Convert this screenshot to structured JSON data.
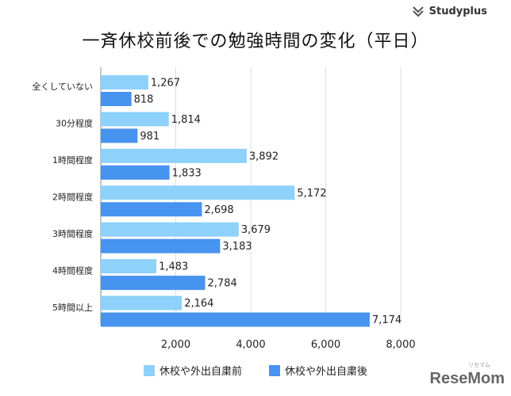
{
  "brand": {
    "name": "Studyplus"
  },
  "watermark": {
    "name": "ReseMom",
    "sub": "リセマム"
  },
  "colors": {
    "before": "#8ED1FA",
    "after": "#4793F0"
  },
  "chart_data": {
    "type": "bar",
    "orientation": "horizontal",
    "title": "一斉休校前後での勉強時間の変化（平日）",
    "categories": [
      "全くしていない",
      "30分程度",
      "1時間程度",
      "2時間程度",
      "3時間程度",
      "4時間程度",
      "5時間以上"
    ],
    "series": [
      {
        "name": "休校や外出自粛前",
        "values": [
          1267,
          1814,
          3892,
          5172,
          3679,
          1483,
          2164
        ]
      },
      {
        "name": "休校や外出自粛後",
        "values": [
          818,
          981,
          1833,
          2698,
          3183,
          2784,
          7174
        ]
      }
    ],
    "value_labels": {
      "before": [
        "1,267",
        "1,814",
        "3,892",
        "5,172",
        "3,679",
        "1,483",
        "2,164"
      ],
      "after": [
        "818",
        "981",
        "1,833",
        "2,698",
        "3,183",
        "2,784",
        "7,174"
      ]
    },
    "xlim": [
      0,
      8000
    ],
    "xticks": [
      2000,
      4000,
      6000,
      8000
    ],
    "xtick_labels": [
      "2,000",
      "4,000",
      "6,000",
      "8,000"
    ],
    "grid": true,
    "legend": "bottom"
  }
}
